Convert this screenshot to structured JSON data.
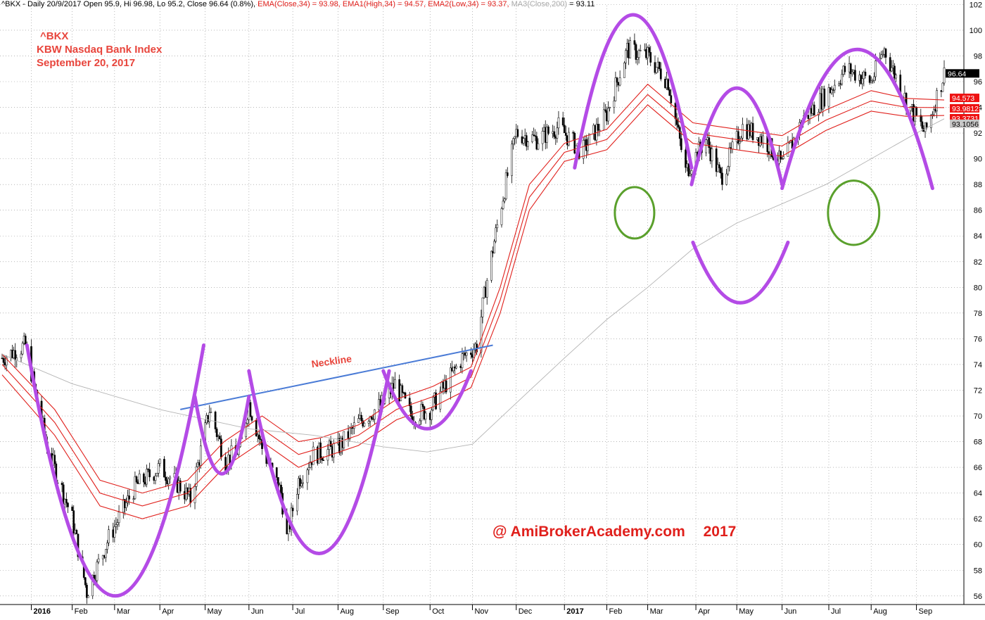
{
  "header": {
    "symbol_line": "^BKX - Daily 20/9/2017 Open 95.9, Hi 96.98, Lo 95.2, Close 96.64 (0.8%)",
    "ema_close": "EMA(Close,34) = 93.98,",
    "ema_high": "EMA1(High,34) = 94.57,",
    "ema_low": "EMA2(Low,34) = 93.37,",
    "ma_label": "MA3(Close,200)",
    "ma_value": "= 93.11"
  },
  "title": {
    "symbol": "^BKX",
    "name": "KBW Nasdaq Bank Index",
    "date": "September 20, 2017"
  },
  "watermark": {
    "site": "@ AmiBrokerAcademy.com",
    "year": "2017"
  },
  "colors": {
    "grid": "#8c8c8c",
    "ema": "#e0201c",
    "ma": "#b4b4b4",
    "pattern": "#b44be6",
    "neckline": "#4a7bd6",
    "face": "#5aa02c",
    "neckline_text": "#e8453c",
    "label_close": "#000000",
    "label_ema": "#ee1111",
    "label_ma": "#c8c8c8"
  },
  "chart_data": {
    "type": "line",
    "subtype": "candlestick-with-overlays",
    "title": "KBW Nasdaq Bank Index",
    "xlabel": "",
    "ylabel": "",
    "ylim": [
      55,
      102
    ],
    "y_ticks": [
      56,
      58,
      60,
      62,
      64,
      66,
      68,
      70,
      72,
      74,
      76,
      78,
      80,
      82,
      84,
      86,
      88,
      90,
      92,
      94,
      96,
      98,
      100,
      102
    ],
    "grid": true,
    "x_tick_labels": [
      {
        "date": "2016-01-04",
        "label": "2016",
        "bold": true
      },
      {
        "date": "2016-02-01",
        "label": "Feb"
      },
      {
        "date": "2016-03-01",
        "label": "Mar"
      },
      {
        "date": "2016-04-01",
        "label": "Apr"
      },
      {
        "date": "2016-05-02",
        "label": "May"
      },
      {
        "date": "2016-06-01",
        "label": "Jun"
      },
      {
        "date": "2016-07-01",
        "label": "Jul"
      },
      {
        "date": "2016-08-01",
        "label": "Aug"
      },
      {
        "date": "2016-09-01",
        "label": "Sep"
      },
      {
        "date": "2016-10-03",
        "label": "Oct"
      },
      {
        "date": "2016-11-01",
        "label": "Nov"
      },
      {
        "date": "2016-12-01",
        "label": "Dec"
      },
      {
        "date": "2017-01-03",
        "label": "2017",
        "bold": true
      },
      {
        "date": "2017-02-01",
        "label": "Feb"
      },
      {
        "date": "2017-03-01",
        "label": "Mar"
      },
      {
        "date": "2017-04-03",
        "label": "Apr"
      },
      {
        "date": "2017-05-01",
        "label": "May"
      },
      {
        "date": "2017-06-01",
        "label": "Jun"
      },
      {
        "date": "2017-07-03",
        "label": "Jul"
      },
      {
        "date": "2017-08-01",
        "label": "Aug"
      },
      {
        "date": "2017-09-01",
        "label": "Sep"
      }
    ],
    "series": [
      {
        "name": "^BKX Close",
        "style": "candlestick",
        "x": [
          "2015-12-15",
          "2015-12-31",
          "2016-01-15",
          "2016-02-01",
          "2016-02-11",
          "2016-02-26",
          "2016-03-15",
          "2016-04-01",
          "2016-04-15",
          "2016-04-22",
          "2016-05-05",
          "2016-05-16",
          "2016-05-26",
          "2016-06-01",
          "2016-06-10",
          "2016-06-23",
          "2016-06-27",
          "2016-07-05",
          "2016-07-15",
          "2016-08-01",
          "2016-08-15",
          "2016-09-01",
          "2016-09-09",
          "2016-09-20",
          "2016-10-03",
          "2016-10-14",
          "2016-10-25",
          "2016-11-04",
          "2016-11-10",
          "2016-11-20",
          "2016-12-01",
          "2016-12-15",
          "2016-12-30",
          "2017-01-15",
          "2017-02-01",
          "2017-02-15",
          "2017-03-01",
          "2017-03-15",
          "2017-03-27",
          "2017-04-10",
          "2017-04-20",
          "2017-05-05",
          "2017-05-20",
          "2017-06-01",
          "2017-06-15",
          "2017-07-01",
          "2017-07-15",
          "2017-08-01",
          "2017-08-10",
          "2017-08-25",
          "2017-09-07",
          "2017-09-20"
        ],
        "values": [
          74.5,
          75.5,
          67.5,
          62.0,
          56.3,
          60.5,
          64.5,
          66.0,
          64.5,
          63.5,
          70.5,
          66.5,
          67.5,
          71.0,
          67.5,
          64.0,
          60.5,
          65.0,
          67.0,
          67.5,
          69.5,
          71.0,
          72.5,
          70.0,
          70.5,
          72.5,
          74.5,
          75.5,
          80.0,
          86.0,
          92.0,
          91.5,
          92.5,
          90.5,
          93.5,
          98.5,
          98.0,
          96.0,
          89.0,
          91.5,
          88.5,
          92.5,
          91.5,
          89.5,
          93.0,
          95.0,
          97.0,
          96.0,
          98.5,
          94.5,
          92.0,
          96.64
        ]
      },
      {
        "name": "EMA(Close,34)",
        "style": "line",
        "x": [
          "2015-12-15",
          "2016-01-20",
          "2016-02-20",
          "2016-03-20",
          "2016-04-20",
          "2016-05-15",
          "2016-06-10",
          "2016-07-05",
          "2016-07-20",
          "2016-08-15",
          "2016-09-10",
          "2016-10-05",
          "2016-10-31",
          "2016-11-20",
          "2016-12-10",
          "2017-01-03",
          "2017-02-01",
          "2017-03-01",
          "2017-04-01",
          "2017-05-01",
          "2017-06-01",
          "2017-07-01",
          "2017-08-01",
          "2017-08-25",
          "2017-09-20"
        ],
        "values": [
          74.0,
          69.5,
          64.0,
          63.0,
          64.0,
          67.0,
          69.0,
          67.0,
          67.5,
          68.5,
          70.5,
          71.5,
          73.0,
          79.0,
          87.0,
          90.5,
          91.5,
          95.0,
          92.0,
          91.5,
          91.0,
          93.0,
          94.5,
          94.0,
          93.98
        ]
      },
      {
        "name": "EMA1(High,34)",
        "style": "line",
        "x": [
          "2015-12-15",
          "2016-01-20",
          "2016-02-20",
          "2016-03-20",
          "2016-04-20",
          "2016-05-15",
          "2016-06-10",
          "2016-07-05",
          "2016-07-20",
          "2016-08-15",
          "2016-09-10",
          "2016-10-05",
          "2016-10-31",
          "2016-11-20",
          "2016-12-10",
          "2017-01-03",
          "2017-02-01",
          "2017-03-01",
          "2017-04-01",
          "2017-05-01",
          "2017-06-01",
          "2017-07-01",
          "2017-08-01",
          "2017-08-25",
          "2017-09-20"
        ],
        "values": [
          74.8,
          70.5,
          65.0,
          64.0,
          65.0,
          68.0,
          70.0,
          68.0,
          68.3,
          69.3,
          71.3,
          72.3,
          73.8,
          80.0,
          88.0,
          91.2,
          92.3,
          95.8,
          92.8,
          92.3,
          91.8,
          93.8,
          95.3,
          94.7,
          94.57
        ]
      },
      {
        "name": "EMA2(Low,34)",
        "style": "line",
        "x": [
          "2015-12-15",
          "2016-01-20",
          "2016-02-20",
          "2016-03-20",
          "2016-04-20",
          "2016-05-15",
          "2016-06-10",
          "2016-07-05",
          "2016-07-20",
          "2016-08-15",
          "2016-09-10",
          "2016-10-05",
          "2016-10-31",
          "2016-11-20",
          "2016-12-10",
          "2017-01-03",
          "2017-02-01",
          "2017-03-01",
          "2017-04-01",
          "2017-05-01",
          "2017-06-01",
          "2017-07-01",
          "2017-08-01",
          "2017-08-25",
          "2017-09-20"
        ],
        "values": [
          73.2,
          68.5,
          63.0,
          62.0,
          63.0,
          66.0,
          68.0,
          66.0,
          66.7,
          67.7,
          69.7,
          70.7,
          72.2,
          78.0,
          86.0,
          89.8,
          90.7,
          94.2,
          91.2,
          90.7,
          90.2,
          92.2,
          93.7,
          93.3,
          93.37
        ]
      },
      {
        "name": "MA3(Close,200)",
        "style": "line",
        "x": [
          "2015-12-15",
          "2016-02-01",
          "2016-04-01",
          "2016-06-01",
          "2016-07-15",
          "2016-09-01",
          "2016-10-01",
          "2016-11-01",
          "2016-12-01",
          "2017-01-03",
          "2017-02-01",
          "2017-03-01",
          "2017-04-01",
          "2017-05-01",
          "2017-06-01",
          "2017-07-01",
          "2017-08-01",
          "2017-09-01",
          "2017-09-20"
        ],
        "values": [
          74.8,
          72.5,
          70.5,
          69.0,
          68.5,
          67.6,
          67.2,
          67.8,
          71.0,
          74.5,
          77.5,
          80.0,
          83.0,
          85.0,
          86.5,
          88.0,
          90.0,
          92.0,
          93.11
        ]
      }
    ],
    "last_value_labels": [
      {
        "text": "96.64",
        "value": 96.64,
        "role": "close"
      },
      {
        "text": "94.573",
        "value": 94.573,
        "role": "ema"
      },
      {
        "text": "93.9812",
        "value": 93.9812,
        "role": "ema"
      },
      {
        "text": "93.3731",
        "value": 93.3731,
        "role": "ema"
      },
      {
        "text": "93.1056",
        "value": 93.1056,
        "role": "ma"
      }
    ],
    "annotations": {
      "neckline": {
        "label": "Neckline",
        "start": {
          "date": "2016-04-15",
          "value": 70.5
        },
        "end": {
          "date": "2016-11-15",
          "value": 75.5
        }
      },
      "pattern_arcs": [
        {
          "from": "2016-01-01",
          "to": "2016-05-01",
          "top": 75.5,
          "bottom": 56.0,
          "dir": "cup"
        },
        {
          "from": "2016-04-25",
          "to": "2016-06-01",
          "top": 71.5,
          "bottom": 65.5,
          "dir": "cup"
        },
        {
          "from": "2016-06-01",
          "to": "2016-09-05",
          "top": 73.5,
          "bottom": 59.3,
          "dir": "cup"
        },
        {
          "from": "2016-09-01",
          "to": "2016-10-31",
          "top": 73.5,
          "bottom": 69.0,
          "dir": "cup"
        },
        {
          "from": "2017-01-10",
          "to": "2017-03-31",
          "top": 101.2,
          "bottom": 89.3,
          "dir": "cap"
        },
        {
          "from": "2017-03-31",
          "to": "2017-06-01",
          "top": 95.5,
          "bottom": 88.0,
          "dir": "cap"
        },
        {
          "from": "2017-06-01",
          "to": "2017-09-12",
          "top": 98.5,
          "bottom": 87.7,
          "dir": "cap"
        }
      ],
      "face": {
        "eyes": [
          {
            "date": "2017-02-20",
            "value": 85.8,
            "rx_days": 10,
            "ry": 4.0
          },
          {
            "date": "2017-07-20",
            "value": 85.8,
            "rx_days": 13,
            "ry": 5.0
          }
        ],
        "smile": {
          "from": "2017-04-01",
          "to": "2017-06-05",
          "top": 83.5,
          "bottom": 78.8
        }
      }
    },
    "watermark": "@ AmiBrokerAcademy.com 2017"
  }
}
